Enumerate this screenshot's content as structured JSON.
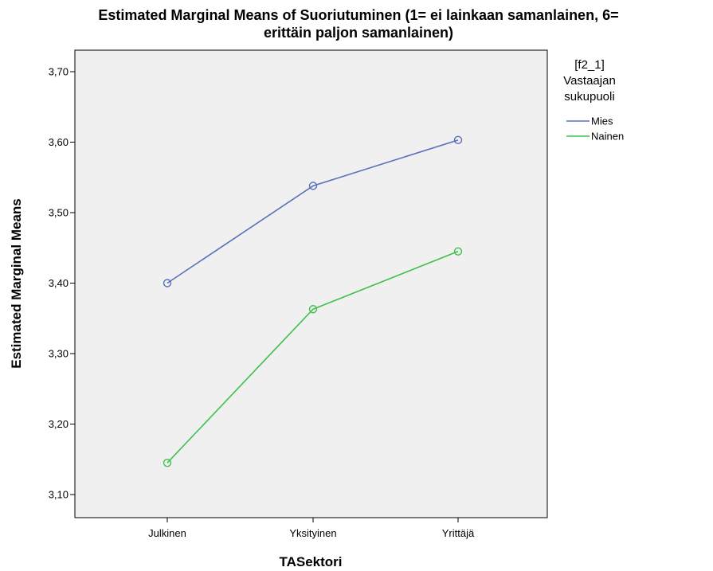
{
  "chart_data": {
    "type": "line",
    "title_line1": "Estimated Marginal Means of Suoriutuminen (1= ei lainkaan samanlainen, 6=",
    "title_line2": "erittäin paljon samanlainen)",
    "xlabel": "TASektori",
    "ylabel": "Estimated Marginal Means",
    "categories": [
      "Julkinen",
      "Yksityinen",
      "Yrittäjä"
    ],
    "ylim": [
      3.06,
      3.74
    ],
    "yticks": [
      "3,10",
      "3,20",
      "3,30",
      "3,40",
      "3,50",
      "3,60",
      "3,70"
    ],
    "ytick_values": [
      3.1,
      3.2,
      3.3,
      3.4,
      3.5,
      3.6,
      3.7
    ],
    "grid": false,
    "plot_background": "#f0f0f0",
    "legend": {
      "position": "right",
      "title_line1": "[f2_1]",
      "title_line2": "Vastaajan",
      "title_line3": "sukupuoli"
    },
    "series": [
      {
        "name": "Mies",
        "color": "#5b70bd",
        "values": [
          3.4,
          3.538,
          3.603
        ]
      },
      {
        "name": "Nainen",
        "color": "#3ec14a",
        "values": [
          3.145,
          3.363,
          3.445
        ]
      }
    ]
  }
}
